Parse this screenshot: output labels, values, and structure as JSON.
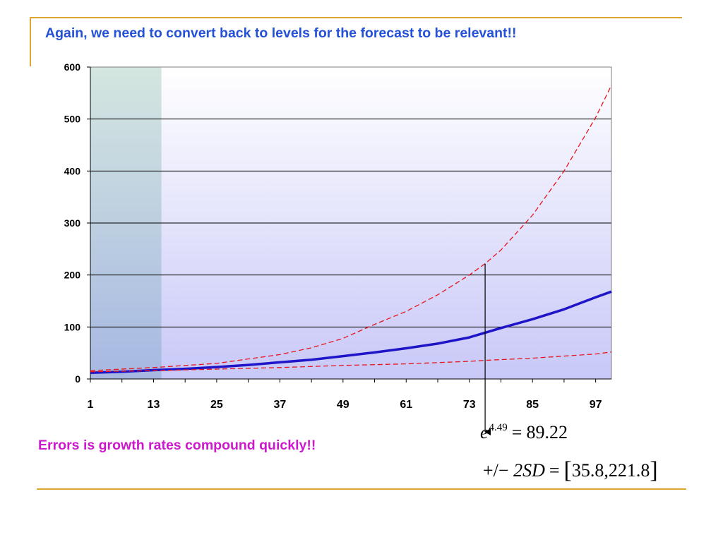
{
  "slide": {
    "title": "Again, we need to convert back to levels for the forecast to be relevant!!",
    "note": "Errors is growth rates compound quickly!!"
  },
  "math": {
    "eq1": {
      "base": "e",
      "exponent": "4.49",
      "equals": "=",
      "value": "89.22"
    },
    "eq2": {
      "prefix": "+/−",
      "expr": "2SD",
      "equals": "=",
      "open": "[",
      "interval": "35.8,221.8",
      "close": "]"
    }
  },
  "colors": {
    "title": "#2451D6",
    "note": "#CC19CC",
    "frame": "#DBA730",
    "forecast_line": "#1E14C8",
    "bands": "#E8141E",
    "sample_shade": "#D4E6DF"
  },
  "chart_data": {
    "type": "line",
    "x": {
      "min": 1,
      "max": 100,
      "ticks": [
        1,
        13,
        25,
        37,
        49,
        61,
        73,
        85,
        97
      ]
    },
    "ylim": [
      0,
      600
    ],
    "yticks": [
      0,
      100,
      200,
      300,
      400,
      500,
      600
    ],
    "grid": true,
    "sample_shade": {
      "x_from": 1,
      "x_to": 14.5
    },
    "series": [
      {
        "style": "solid",
        "points": [
          [
            1,
            12
          ],
          [
            7,
            14
          ],
          [
            13,
            17
          ],
          [
            20,
            20
          ],
          [
            25,
            23
          ],
          [
            31,
            27
          ],
          [
            37,
            32
          ],
          [
            43,
            37
          ],
          [
            49,
            44
          ],
          [
            55,
            51
          ],
          [
            61,
            59
          ],
          [
            67,
            68
          ],
          [
            73,
            80
          ],
          [
            76,
            89
          ],
          [
            79,
            98
          ],
          [
            85,
            115
          ],
          [
            91,
            134
          ],
          [
            97,
            157
          ],
          [
            100,
            168
          ]
        ]
      },
      {
        "style": "dashed",
        "points": [
          [
            1,
            16
          ],
          [
            13,
            22
          ],
          [
            25,
            30
          ],
          [
            37,
            47
          ],
          [
            43,
            60
          ],
          [
            49,
            78
          ],
          [
            55,
            105
          ],
          [
            61,
            130
          ],
          [
            67,
            162
          ],
          [
            73,
            200
          ],
          [
            76,
            221.8
          ],
          [
            79,
            248
          ],
          [
            85,
            315
          ],
          [
            91,
            400
          ],
          [
            97,
            503
          ],
          [
            100,
            565
          ]
        ]
      },
      {
        "style": "dashed",
        "points": [
          [
            1,
            14
          ],
          [
            13,
            16
          ],
          [
            25,
            19
          ],
          [
            37,
            22
          ],
          [
            49,
            26
          ],
          [
            61,
            29
          ],
          [
            73,
            34
          ],
          [
            76,
            35.8
          ],
          [
            85,
            40
          ],
          [
            97,
            48
          ],
          [
            100,
            52
          ]
        ]
      }
    ],
    "annotation": {
      "x": 76,
      "y": 221.8,
      "arrow_to": "eq1"
    }
  }
}
